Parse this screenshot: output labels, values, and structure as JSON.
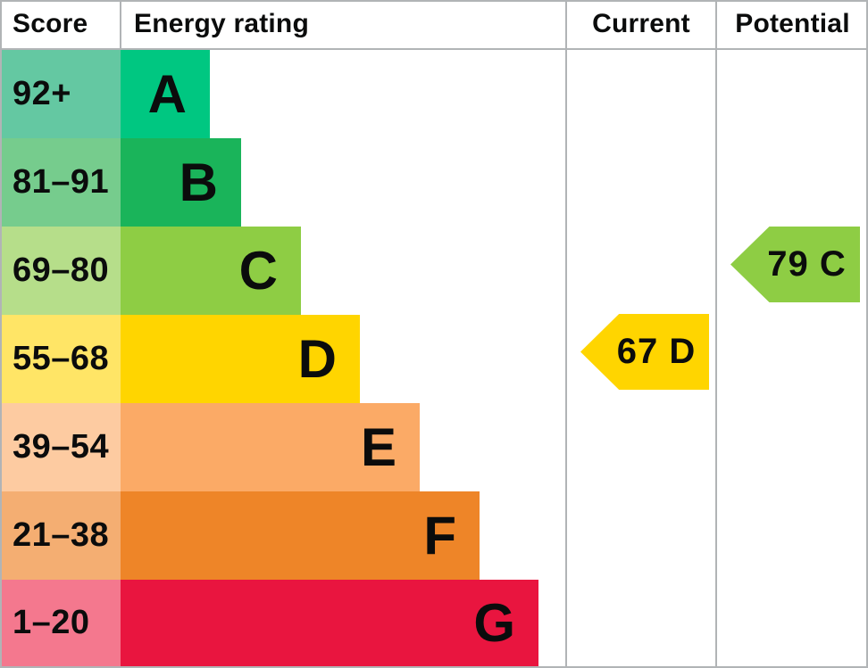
{
  "header": {
    "score": "Score",
    "energy_rating": "Energy rating",
    "current": "Current",
    "potential": "Potential"
  },
  "rows": [
    {
      "score": "92+",
      "letter": "A",
      "band_color": "#00c781",
      "score_bg": "#64c8a2"
    },
    {
      "score": "81–91",
      "letter": "B",
      "band_color": "#1ab45a",
      "score_bg": "#76cc8d"
    },
    {
      "score": "69–80",
      "letter": "C",
      "band_color": "#8ecd44",
      "score_bg": "#b6de8a"
    },
    {
      "score": "55–68",
      "letter": "D",
      "band_color": "#ffd500",
      "score_bg": "#ffe566"
    },
    {
      "score": "39–54",
      "letter": "E",
      "band_color": "#fbaa66",
      "score_bg": "#fdcba1"
    },
    {
      "score": "21–38",
      "letter": "F",
      "band_color": "#ee8528",
      "score_bg": "#f4ae72"
    },
    {
      "score": "1–20",
      "letter": "G",
      "band_color": "#e9153f",
      "score_bg": "#f4788e"
    }
  ],
  "current": {
    "label": "67 D",
    "value": 67,
    "rating": "D",
    "color": "#ffd500"
  },
  "potential": {
    "label": "79 C",
    "value": 79,
    "rating": "C",
    "color": "#8ecd44"
  },
  "colors": {
    "border": "#b1b4b6",
    "text": "#0b0c0c",
    "background": "#ffffff"
  },
  "chart_data": {
    "type": "bar",
    "title": "Energy rating",
    "columns": [
      "Score",
      "Energy rating",
      "Current",
      "Potential"
    ],
    "categories": [
      "A",
      "B",
      "C",
      "D",
      "E",
      "F",
      "G"
    ],
    "score_ranges": [
      "92+",
      "81–91",
      "69–80",
      "55–68",
      "39–54",
      "21–38",
      "1–20"
    ],
    "band_colors": [
      "#00c781",
      "#1ab45a",
      "#8ecd44",
      "#ffd500",
      "#fbaa66",
      "#ee8528",
      "#e9153f"
    ],
    "bar_relative_widths": [
      100,
      135,
      202,
      268,
      335,
      402,
      468
    ],
    "current": {
      "value": 67,
      "rating": "D"
    },
    "potential": {
      "value": 79,
      "rating": "C"
    },
    "legend_position": "none",
    "grid": false
  }
}
